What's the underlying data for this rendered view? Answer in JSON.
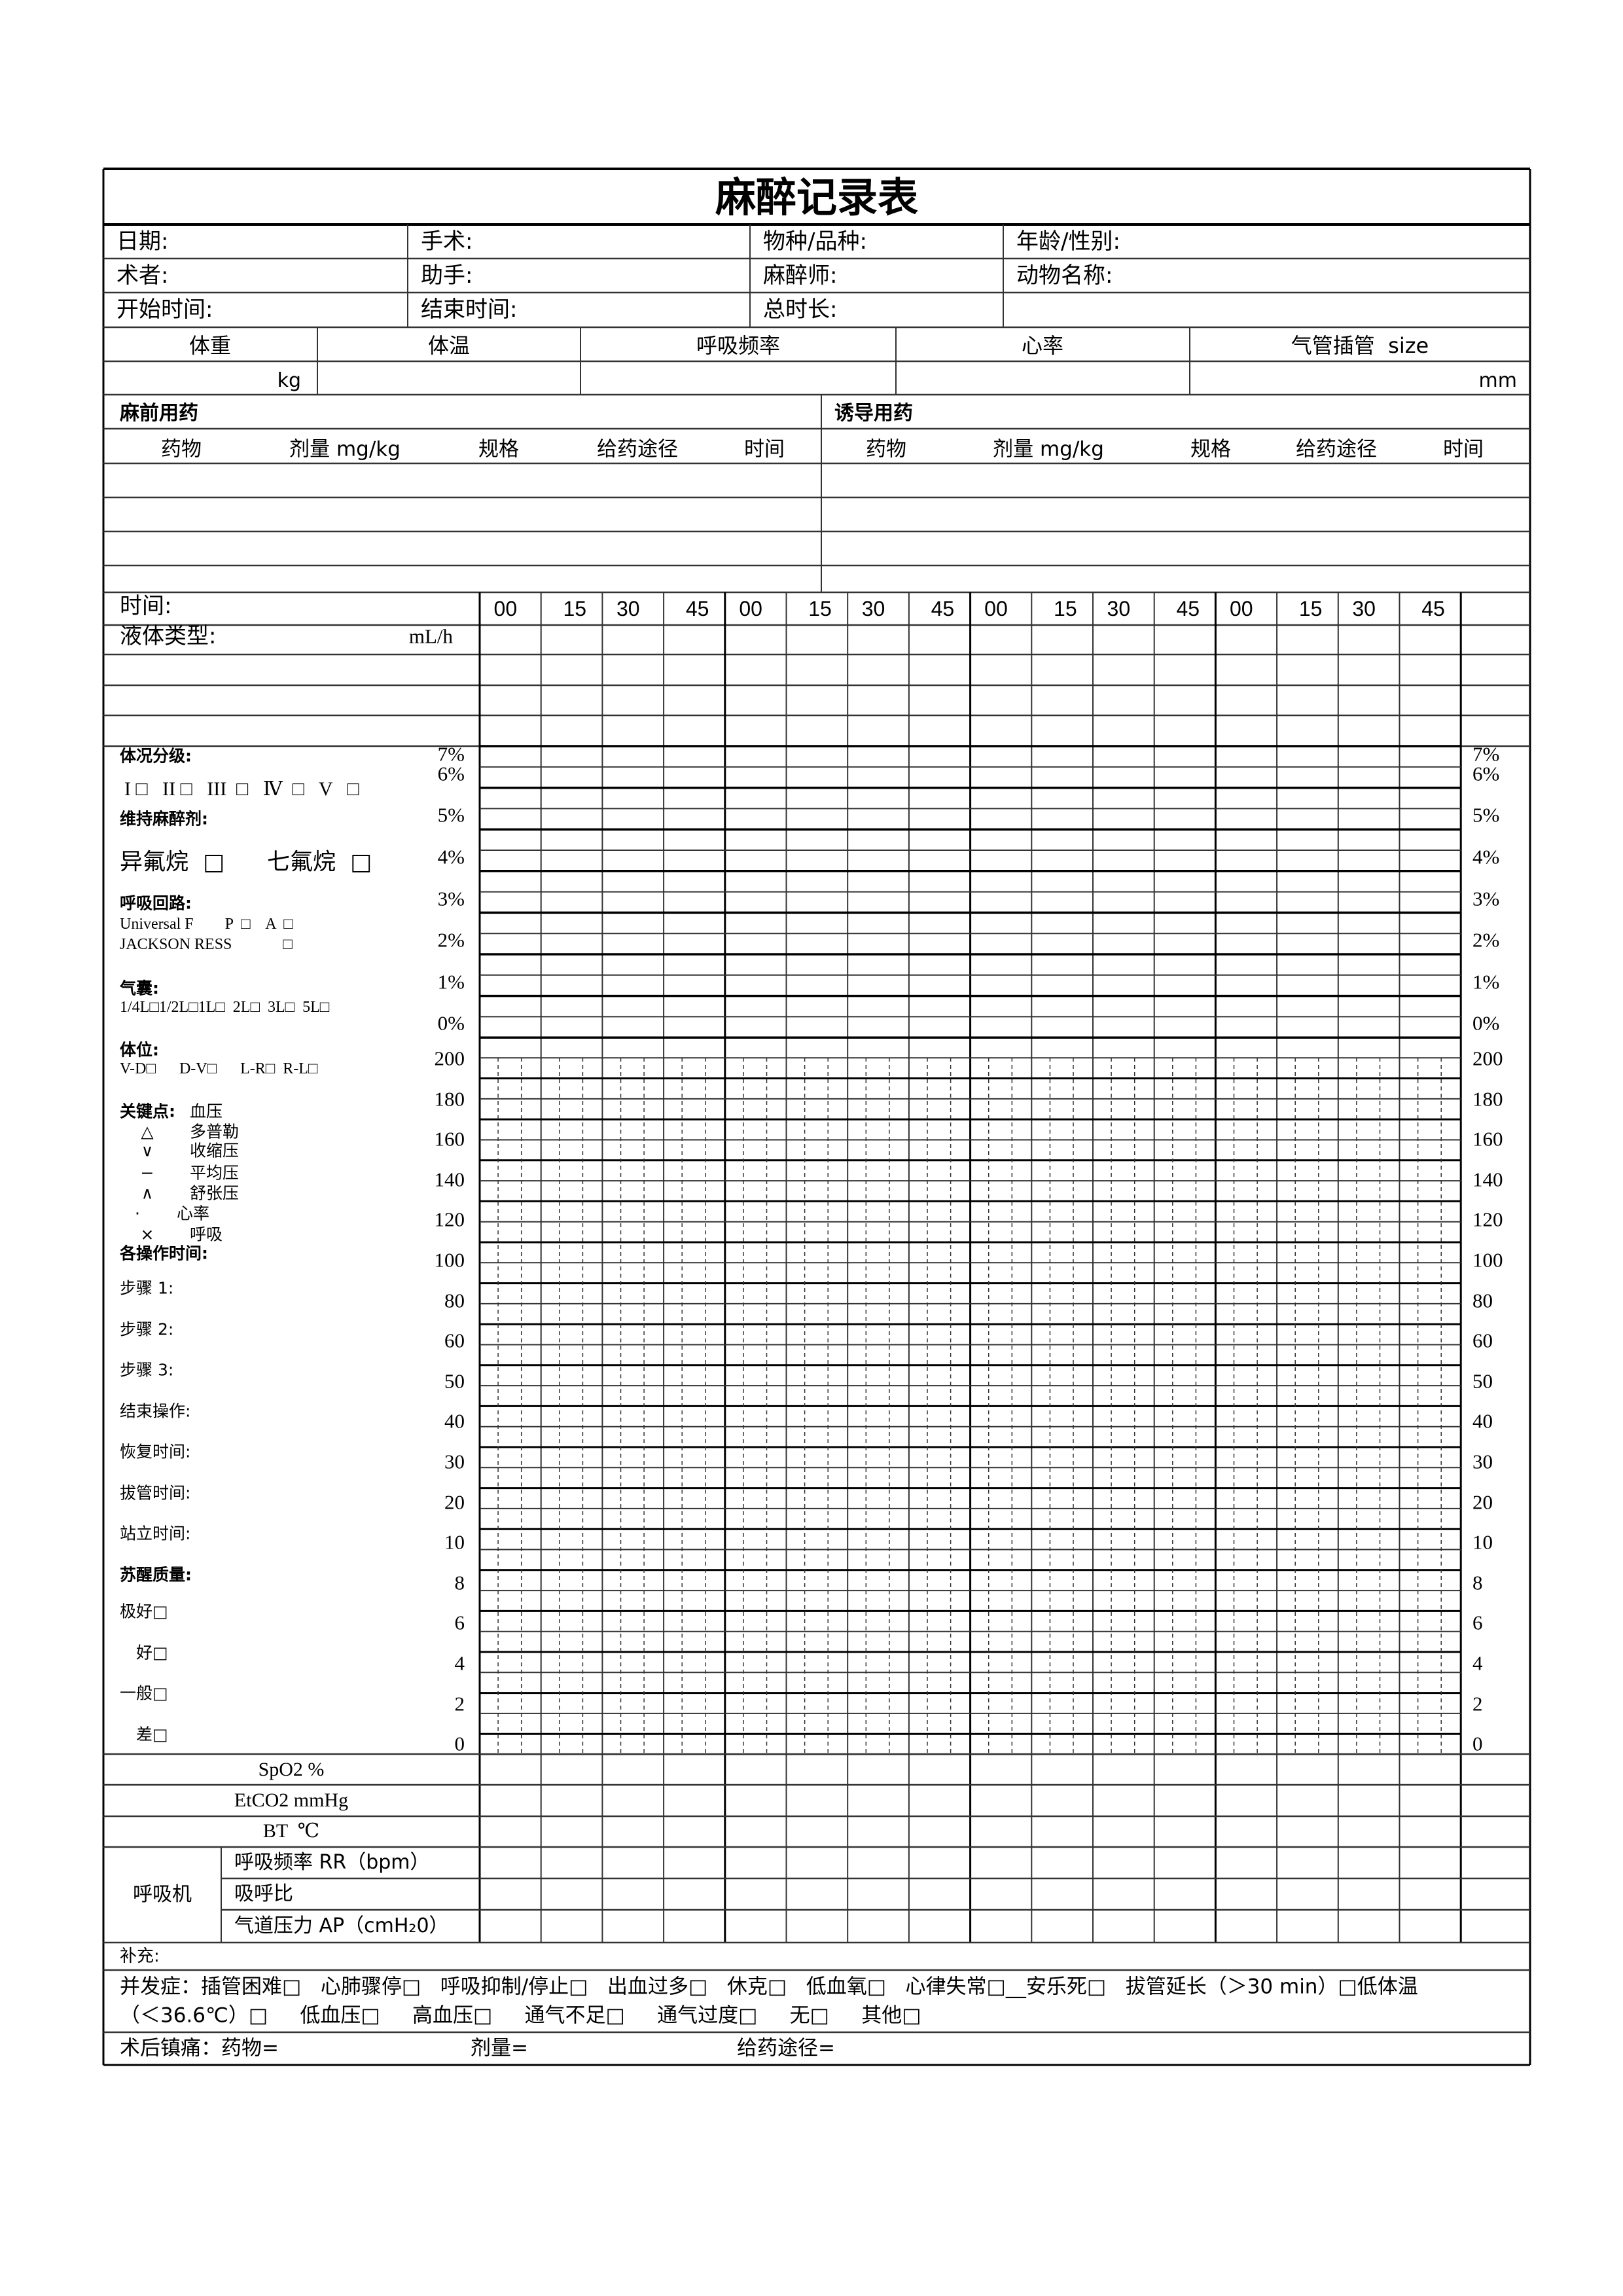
{
  "title": "麻醉记录表",
  "info": [
    [
      "日期:",
      "手术:",
      "物种/品种:",
      "年龄/性别:"
    ],
    [
      "术者:",
      "助手:",
      "麻醉师:",
      "动物名称:"
    ],
    [
      "开始时间:",
      "结束时间:",
      "总时长:",
      ""
    ]
  ],
  "vitals": {
    "headers": [
      "体重",
      "体温",
      "呼吸频率",
      "心率",
      "气管插管  size"
    ],
    "units": [
      "kg",
      "",
      "",
      "",
      "mm"
    ]
  },
  "premed": {
    "title": "麻前用药",
    "columns": [
      "药物",
      "剂量 mg/kg",
      "规格",
      "给药途径",
      "时间"
    ]
  },
  "induction": {
    "title": "诱导用药",
    "columns": [
      "药物",
      "剂量 mg/kg",
      "规格",
      "给药途径",
      "时间"
    ]
  },
  "timeline": {
    "label": "时间:",
    "ticks": [
      "00",
      "15",
      "30",
      "45",
      "00",
      "15",
      "30",
      "45",
      "00",
      "15",
      "30",
      "45",
      "00",
      "15",
      "30",
      "45"
    ],
    "fluid_label": "液体类型:",
    "fluid_unit": "mL/h"
  },
  "scales": {
    "percent": [
      "7%",
      "6%",
      "5%",
      "4%",
      "3%",
      "2%",
      "1%",
      "0%"
    ],
    "bp": [
      "200",
      "180",
      "160",
      "140",
      "120",
      "100",
      "80",
      "60",
      "50",
      "40",
      "30",
      "20",
      "10",
      "8",
      "6",
      "4",
      "2",
      "0"
    ]
  },
  "left_panel": {
    "asa_title": "体况分级:",
    "asa_options": "I □   II □   III  □   Ⅳ  □   V   □",
    "maint_title": "维持麻醉剂:",
    "maint_options": [
      "异氟烷  □",
      "七氟烷  □"
    ],
    "circuit_title": "呼吸回路:",
    "circuit_line1": "Universal F        P  □    A  □",
    "circuit_line2": "JACKSON RESS             □",
    "bag_title": "气囊:",
    "bag_options": "1/4L□1/2L□1L□  2L□  3L□  5L□",
    "position_title": "体位:",
    "position_options": "V-D□      D-V□      L-R□  R-L□",
    "key_title": "关键点:",
    "key_bp": "血压",
    "legend": [
      {
        "symbol": "△",
        "label": "多普勒"
      },
      {
        "symbol": "∨",
        "label": "收缩压"
      },
      {
        "symbol": "−",
        "label": "平均压"
      },
      {
        "symbol": "∧",
        "label": "舒张压"
      },
      {
        "symbol": "·",
        "label": "心率"
      },
      {
        "symbol": "×",
        "label": "呼吸"
      }
    ],
    "ops_title": "各操作时间:",
    "ops": [
      "步骤 1:",
      "步骤 2:",
      "步骤 3:",
      "结束操作:",
      "恢复时间:",
      "拔管时间:",
      "站立时间:"
    ],
    "recovery_title": "苏醒质量:",
    "recovery": [
      "极好□",
      "好□",
      "一般□",
      "差□"
    ]
  },
  "monitor_rows": [
    "SpO2 %",
    "EtCO2 mmHg",
    "BT  ℃"
  ],
  "ventilator": {
    "label": "呼吸机",
    "rows": [
      "呼吸频率 RR（bpm）",
      "吸呼比",
      "气道压力 AP（cmH₂0）"
    ]
  },
  "supplement": "补充:",
  "complications": {
    "line1": "并发症：插管困难□   心肺骤停□   呼吸抑制/停止□   出血过多□   休克□   低血氧□   心律失常□__安乐死□   拔管延长（＞30 min）□低体温",
    "line2": "（＜36.6℃）□     低血压□     高血压□     通气不足□     通气过度□     无□     其他□"
  },
  "analgesia": {
    "label": "术后镇痛：药物=",
    "dose": "剂量=",
    "route": "给药途径="
  }
}
